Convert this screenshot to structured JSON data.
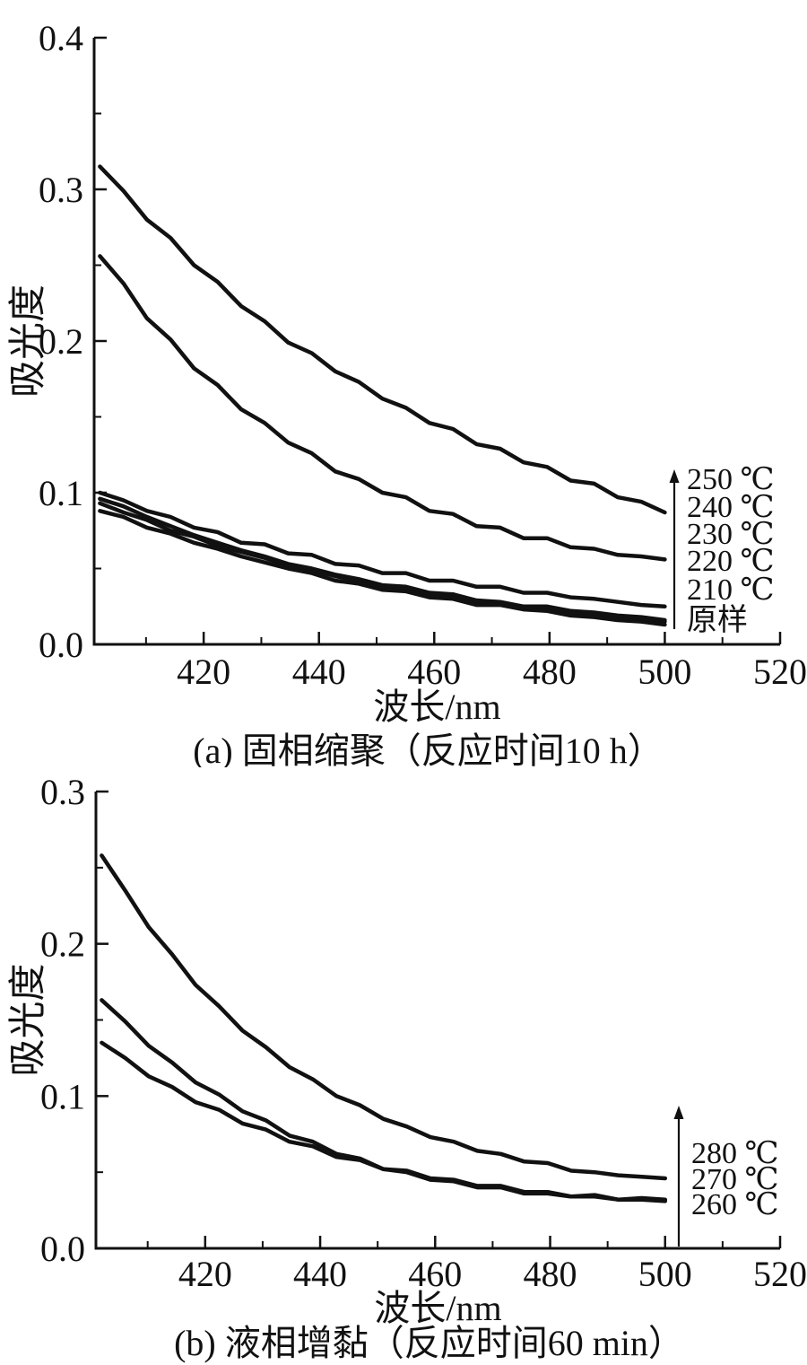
{
  "page": {
    "background": "#ffffff",
    "ink": "#111111"
  },
  "chart_data": [
    {
      "id": "a",
      "type": "line",
      "title": "(a) 固相缩聚（反应时间10 h）",
      "xlabel": "波长/nm",
      "ylabel": "吸光度",
      "xlim": [
        401,
        520
      ],
      "ylim": [
        0,
        0.4
      ],
      "x_ticks": [
        420,
        440,
        460,
        480,
        500,
        520
      ],
      "x_tick_labels": [
        "420",
        "440",
        "460",
        "480",
        "500",
        "520"
      ],
      "x_minor_ticks": [
        410,
        430,
        450,
        470,
        490,
        510
      ],
      "y_ticks": [
        0.0,
        0.1,
        0.2,
        0.3,
        0.4
      ],
      "y_tick_labels": [
        "0.0",
        "0.1",
        "0.2",
        "0.3",
        "0.4"
      ],
      "y_minor_ticks": [
        0.05,
        0.15,
        0.25,
        0.35
      ],
      "grid": false,
      "x_start": 402,
      "x_end": 500,
      "series": [
        {
          "name": "250 ℃",
          "values": [
            0.315,
            0.299,
            0.28,
            0.268,
            0.25,
            0.239,
            0.223,
            0.213,
            0.199,
            0.192,
            0.18,
            0.173,
            0.162,
            0.156,
            0.146,
            0.142,
            0.132,
            0.129,
            0.12,
            0.117,
            0.108,
            0.106,
            0.097,
            0.094,
            0.087
          ]
        },
        {
          "name": "240 ℃",
          "values": [
            0.256,
            0.238,
            0.215,
            0.201,
            0.182,
            0.171,
            0.155,
            0.146,
            0.133,
            0.126,
            0.114,
            0.109,
            0.1,
            0.097,
            0.088,
            0.086,
            0.078,
            0.077,
            0.07,
            0.07,
            0.064,
            0.063,
            0.059,
            0.058,
            0.056
          ]
        },
        {
          "name": "230 ℃",
          "values": [
            0.1,
            0.095,
            0.088,
            0.084,
            0.077,
            0.074,
            0.067,
            0.066,
            0.06,
            0.059,
            0.053,
            0.052,
            0.047,
            0.047,
            0.042,
            0.042,
            0.038,
            0.038,
            0.034,
            0.034,
            0.031,
            0.03,
            0.028,
            0.026,
            0.025
          ]
        },
        {
          "name": "220 ℃",
          "values": [
            0.096,
            0.091,
            0.084,
            0.078,
            0.072,
            0.067,
            0.062,
            0.058,
            0.053,
            0.05,
            0.046,
            0.043,
            0.039,
            0.038,
            0.034,
            0.033,
            0.029,
            0.028,
            0.025,
            0.025,
            0.022,
            0.021,
            0.019,
            0.018,
            0.016
          ]
        },
        {
          "name": "210 ℃",
          "values": [
            0.093,
            0.087,
            0.082,
            0.075,
            0.071,
            0.065,
            0.061,
            0.057,
            0.052,
            0.049,
            0.045,
            0.042,
            0.038,
            0.037,
            0.033,
            0.032,
            0.028,
            0.027,
            0.024,
            0.024,
            0.021,
            0.02,
            0.018,
            0.017,
            0.015
          ]
        },
        {
          "name": "原样",
          "values": [
            0.088,
            0.084,
            0.077,
            0.073,
            0.067,
            0.063,
            0.058,
            0.054,
            0.05,
            0.047,
            0.042,
            0.04,
            0.036,
            0.035,
            0.031,
            0.03,
            0.026,
            0.026,
            0.023,
            0.022,
            0.019,
            0.018,
            0.016,
            0.015,
            0.013
          ]
        }
      ],
      "legend": {
        "arrow_icon": "up-arrow",
        "arrow_meaning": "温度升高方向",
        "labels": [
          "250 ℃",
          "240 ℃",
          "230 ℃",
          "220 ℃",
          "210 ℃",
          "原样"
        ],
        "position": "right-inside"
      }
    },
    {
      "id": "b",
      "type": "line",
      "title": "(b) 液相增黏（反应时间60 min）",
      "xlabel": "波长/nm",
      "ylabel": "吸光度",
      "xlim": [
        401,
        520
      ],
      "ylim": [
        0,
        0.3
      ],
      "x_ticks": [
        420,
        440,
        460,
        480,
        500,
        520
      ],
      "x_tick_labels": [
        "420",
        "440",
        "460",
        "480",
        "500",
        "520"
      ],
      "x_minor_ticks": [
        410,
        430,
        450,
        470,
        490,
        510
      ],
      "y_ticks": [
        0.0,
        0.1,
        0.2,
        0.3
      ],
      "y_tick_labels": [
        "0.0",
        "0.1",
        "0.2",
        "0.3"
      ],
      "y_minor_ticks": [
        0.05,
        0.15,
        0.25
      ],
      "grid": false,
      "x_start": 402,
      "x_end": 500,
      "series": [
        {
          "name": "280 ℃",
          "values": [
            0.258,
            0.235,
            0.211,
            0.193,
            0.173,
            0.159,
            0.143,
            0.132,
            0.119,
            0.111,
            0.1,
            0.094,
            0.085,
            0.08,
            0.073,
            0.07,
            0.064,
            0.062,
            0.057,
            0.056,
            0.051,
            0.05,
            0.048,
            0.047,
            0.046
          ]
        },
        {
          "name": "270 ℃",
          "values": [
            0.163,
            0.149,
            0.133,
            0.122,
            0.109,
            0.101,
            0.09,
            0.084,
            0.074,
            0.07,
            0.062,
            0.059,
            0.052,
            0.05,
            0.045,
            0.044,
            0.04,
            0.04,
            0.036,
            0.036,
            0.034,
            0.034,
            0.032,
            0.033,
            0.032
          ]
        },
        {
          "name": "260 ℃",
          "values": [
            0.135,
            0.125,
            0.113,
            0.106,
            0.096,
            0.091,
            0.082,
            0.078,
            0.07,
            0.067,
            0.06,
            0.058,
            0.052,
            0.051,
            0.046,
            0.045,
            0.041,
            0.041,
            0.037,
            0.037,
            0.034,
            0.035,
            0.032,
            0.032,
            0.031
          ]
        }
      ],
      "legend": {
        "arrow_icon": "up-arrow",
        "arrow_meaning": "温度升高方向",
        "labels": [
          "280 ℃",
          "270 ℃",
          "260 ℃"
        ],
        "position": "right-inside"
      }
    }
  ]
}
